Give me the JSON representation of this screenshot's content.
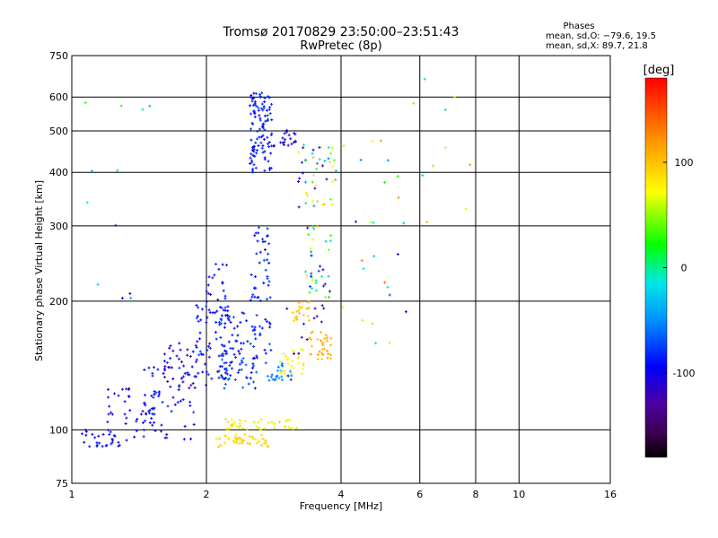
{
  "chart_data": {
    "type": "scatter",
    "title": "Tromsø 20170829 23:50:00–23:51:43",
    "subtitle": "RwPretec (8p)",
    "xlabel": "Frequency [MHz]",
    "ylabel": "Stationary phase Virtual Height [km]",
    "x_scale": "log",
    "y_scale": "log",
    "xlim": [
      1,
      16
    ],
    "ylim": [
      75,
      750
    ],
    "x_ticks": [
      1,
      2,
      4,
      6,
      8,
      10,
      16
    ],
    "x_tick_labels": [
      "1",
      "2",
      "4",
      "6",
      "8",
      "10",
      "16"
    ],
    "x_gridlines": [
      2,
      4,
      6,
      8,
      10
    ],
    "y_ticks": [
      75,
      100,
      200,
      300,
      400,
      500,
      600,
      750
    ],
    "y_tick_labels": [
      "75",
      "100",
      "200",
      "300",
      "400",
      "500",
      "600",
      "750"
    ],
    "y_gridlines": [
      100,
      200,
      300,
      400,
      500,
      600
    ],
    "grid": true,
    "colorbar": {
      "label": "[deg]",
      "range": [
        -180,
        180
      ],
      "ticks": [
        100,
        0,
        -100
      ],
      "tick_labels": [
        "100",
        "0",
        "-100"
      ]
    },
    "stats": {
      "title": "Phases",
      "line_o": "mean, sd,O: −79.6, 19.5",
      "line_x": "mean, sd,X:  89.7, 21.8"
    },
    "clusters": [
      {
        "x": [
          1.05,
          1.35
        ],
        "y": [
          91,
          100
        ],
        "phase": [
          -120,
          -80
        ],
        "n": 30
      },
      {
        "x": [
          1.2,
          1.55
        ],
        "y": [
          96,
          125
        ],
        "phase": [
          -115,
          -80
        ],
        "n": 45
      },
      {
        "x": [
          1.45,
          1.9
        ],
        "y": [
          95,
          145
        ],
        "phase": [
          -110,
          -75
        ],
        "n": 55
      },
      {
        "x": [
          1.6,
          2.05
        ],
        "y": [
          125,
          160
        ],
        "phase": [
          -130,
          -95
        ],
        "n": 40
      },
      {
        "x": [
          1.9,
          2.3
        ],
        "y": [
          130,
          200
        ],
        "phase": [
          -110,
          -70
        ],
        "n": 70
      },
      {
        "x": [
          2.0,
          2.25
        ],
        "y": [
          180,
          245
        ],
        "phase": [
          -105,
          -80
        ],
        "n": 30
      },
      {
        "x": [
          2.15,
          2.6
        ],
        "y": [
          125,
          150
        ],
        "phase": [
          -100,
          -60
        ],
        "n": 45
      },
      {
        "x": [
          2.3,
          2.8
        ],
        "y": [
          150,
          190
        ],
        "phase": [
          -100,
          -70
        ],
        "n": 40
      },
      {
        "x": [
          2.5,
          2.8
        ],
        "y": [
          200,
          300
        ],
        "phase": [
          -95,
          -75
        ],
        "n": 40
      },
      {
        "x": [
          2.5,
          2.8
        ],
        "y": [
          400,
          620
        ],
        "phase": [
          -95,
          -75
        ],
        "n": 110
      },
      {
        "x": [
          2.8,
          3.2
        ],
        "y": [
          455,
          505
        ],
        "phase": [
          -130,
          -90
        ],
        "n": 20
      },
      {
        "x": [
          2.7,
          3.1
        ],
        "y": [
          130,
          145
        ],
        "phase": [
          -75,
          -35
        ],
        "n": 25
      },
      {
        "x": [
          2.1,
          2.75
        ],
        "y": [
          91,
          98
        ],
        "phase": [
          80,
          100
        ],
        "n": 45
      },
      {
        "x": [
          2.2,
          3.2
        ],
        "y": [
          100,
          106
        ],
        "phase": [
          60,
          95
        ],
        "n": 40
      },
      {
        "x": [
          2.9,
          3.3
        ],
        "y": [
          135,
          155
        ],
        "phase": [
          60,
          90
        ],
        "n": 25
      },
      {
        "x": [
          3.1,
          3.4
        ],
        "y": [
          180,
          200
        ],
        "phase": [
          90,
          110
        ],
        "n": 20
      },
      {
        "x": [
          3.4,
          3.8
        ],
        "y": [
          145,
          170
        ],
        "phase": [
          95,
          125
        ],
        "n": 30
      },
      {
        "x": [
          3.3,
          3.8
        ],
        "y": [
          200,
          300
        ],
        "phase": [
          -140,
          110
        ],
        "n": 35
      },
      {
        "x": [
          3.2,
          3.9
        ],
        "y": [
          330,
          470
        ],
        "phase": [
          -140,
          110
        ],
        "n": 45
      },
      {
        "x": [
          3.0,
          3.7
        ],
        "y": [
          150,
          200
        ],
        "phase": [
          -140,
          -100
        ],
        "n": 12
      },
      {
        "x": [
          4.0,
          5.8
        ],
        "y": [
          150,
          500
        ],
        "phase": [
          -140,
          140
        ],
        "n": 25
      },
      {
        "x": [
          5.8,
          7.8
        ],
        "y": [
          230,
          680
        ],
        "phase": [
          -30,
          160
        ],
        "n": 10
      },
      {
        "x": [
          1.05,
          1.5
        ],
        "y": [
          200,
          650
        ],
        "phase": [
          -140,
          60
        ],
        "n": 12
      }
    ]
  }
}
